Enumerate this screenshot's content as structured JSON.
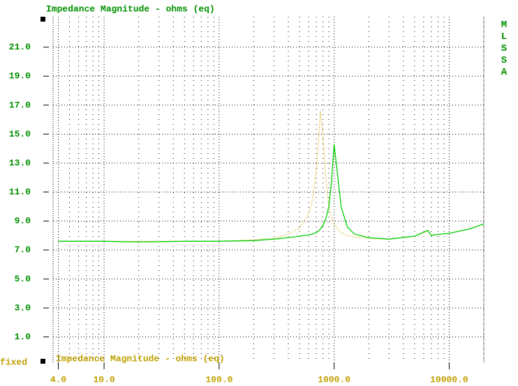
{
  "chart_data": {
    "type": "line",
    "title": "Impedance Magnitude - ohms (eq)",
    "footer": "Impedance Magnitude - ohms (eq)",
    "corner_label": "fixed",
    "side_label": "MLSSA",
    "log_x": true,
    "grid": true,
    "x": [
      4,
      10,
      20,
      50,
      100,
      200,
      300,
      400,
      500,
      600,
      650,
      700,
      730,
      760,
      800,
      850,
      900,
      950,
      1000,
      1060,
      1150,
      1300,
      1500,
      2000,
      3000,
      5000,
      6500,
      7000,
      7500,
      10000,
      15000,
      20000
    ],
    "series": [
      {
        "color": "#00d000",
        "dash": false,
        "values": [
          7.6,
          7.6,
          7.55,
          7.6,
          7.6,
          7.65,
          7.75,
          7.85,
          7.95,
          8.05,
          8.1,
          8.2,
          8.3,
          8.45,
          8.7,
          9.2,
          10.0,
          11.8,
          14.3,
          12.5,
          10.0,
          8.6,
          8.1,
          7.85,
          7.75,
          7.95,
          8.35,
          8.0,
          8.05,
          8.15,
          8.45,
          8.8
        ]
      },
      {
        "color": "#d0a000",
        "dash": true,
        "values": [
          7.6,
          7.6,
          7.6,
          7.6,
          7.6,
          7.7,
          7.8,
          8.1,
          8.5,
          9.5,
          10.5,
          12.5,
          14.5,
          16.6,
          14.8,
          11.8,
          10.0,
          9.2,
          8.8,
          8.5,
          8.2,
          8.0,
          7.9,
          7.8,
          7.75,
          7.95,
          8.3,
          8.0,
          8.05,
          8.15,
          8.45,
          8.8
        ]
      }
    ],
    "xlim": [
      3.6,
      20000
    ],
    "ylim": [
      -0.8,
      23.1
    ],
    "xticks": [
      {
        "value": 4,
        "label": "4.0"
      },
      {
        "value": 10,
        "label": "10.0"
      },
      {
        "value": 100,
        "label": "100.0"
      },
      {
        "value": 1000,
        "label": "1000.0"
      },
      {
        "value": 10000,
        "label": "10000.0"
      }
    ],
    "x_minor_ticks": [
      5,
      6,
      7,
      8,
      9,
      20,
      30,
      40,
      50,
      60,
      70,
      80,
      90,
      200,
      300,
      400,
      500,
      600,
      700,
      800,
      900,
      2000,
      3000,
      4000,
      5000,
      6000,
      7000,
      8000,
      9000,
      20000
    ],
    "yticks": [
      {
        "value": 1,
        "label": "1.0"
      },
      {
        "value": 3,
        "label": "3.0"
      },
      {
        "value": 5,
        "label": "5.0"
      },
      {
        "value": 7,
        "label": "7.0"
      },
      {
        "value": 9,
        "label": "9.0"
      },
      {
        "value": 11,
        "label": "11.0"
      },
      {
        "value": 13,
        "label": "13.0"
      },
      {
        "value": 15,
        "label": "15.0"
      },
      {
        "value": 17,
        "label": "17.0"
      },
      {
        "value": 19,
        "label": "19.0"
      },
      {
        "value": 21,
        "label": "21.0"
      }
    ]
  }
}
